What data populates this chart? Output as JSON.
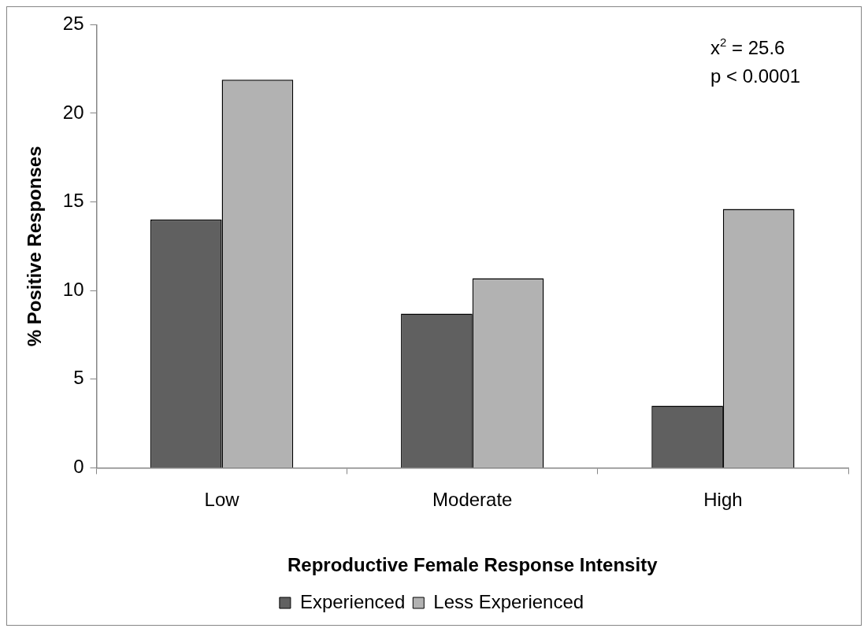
{
  "chart_data": {
    "type": "bar",
    "xlabel": "Reproductive Female Response Intensity",
    "ylabel": "% Positive Responses",
    "categories": [
      "Low",
      "Moderate",
      "High"
    ],
    "series": [
      {
        "name": "Experienced",
        "color": "#606060",
        "values": [
          14.0,
          8.7,
          3.5
        ]
      },
      {
        "name": "Less Experienced",
        "color": "#b2b2b2",
        "values": [
          21.9,
          10.7,
          14.6
        ]
      }
    ],
    "ylim": [
      0,
      25
    ],
    "yticks": [
      0,
      5,
      10,
      15,
      20,
      25
    ],
    "grid": false,
    "legend": "bottom",
    "annotations": [
      "x$^{2}$ = 25.6",
      "p < 0.0001"
    ]
  }
}
